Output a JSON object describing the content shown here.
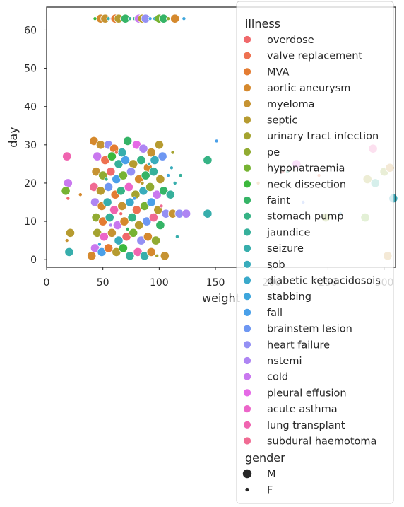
{
  "chart_data": {
    "type": "scatter",
    "title": "",
    "xlabel": "weight",
    "ylabel": "day",
    "xlim": [
      0,
      310
    ],
    "ylim": [
      -2,
      66
    ],
    "xticks": [
      "0",
      "50",
      "100",
      "150",
      "200",
      "250",
      "300"
    ],
    "xtick_values": [
      0,
      50,
      100,
      150,
      200,
      250,
      300
    ],
    "yticks": [
      "0",
      "10",
      "20",
      "30",
      "40",
      "50",
      "60"
    ],
    "ytick_values": [
      0,
      10,
      20,
      30,
      40,
      50,
      60
    ],
    "grid": false,
    "legend_placement": "top-right, overlapping plot",
    "legend_hue_title": "illness",
    "legend_size_title": "gender",
    "illnesses": [
      {
        "name": "overdose",
        "color": "#f0696b"
      },
      {
        "name": "valve replacement",
        "color": "#ee7151"
      },
      {
        "name": "MVA",
        "color": "#e47c32"
      },
      {
        "name": "aortic aneurysm",
        "color": "#d5892d"
      },
      {
        "name": "myeloma",
        "color": "#c69332"
      },
      {
        "name": "septic",
        "color": "#b69b30"
      },
      {
        "name": "urinary tract infection",
        "color": "#a4a32f"
      },
      {
        "name": "pe",
        "color": "#91ab32"
      },
      {
        "name": "hyponatraemia",
        "color": "#76b332"
      },
      {
        "name": "neck dissection",
        "color": "#3cb83c"
      },
      {
        "name": "faint",
        "color": "#35b466"
      },
      {
        "name": "stomach pump",
        "color": "#36b385"
      },
      {
        "name": "jaundice",
        "color": "#36b09b"
      },
      {
        "name": "seizure",
        "color": "#37aeac"
      },
      {
        "name": "sob",
        "color": "#39acbc"
      },
      {
        "name": "diabetic ketoacidosois",
        "color": "#3aa9ca"
      },
      {
        "name": "stabbing",
        "color": "#3ea6dc"
      },
      {
        "name": "fall",
        "color": "#4aa0e9"
      },
      {
        "name": "brainstem lesion",
        "color": "#6e97f2"
      },
      {
        "name": "heart failure",
        "color": "#9490f4"
      },
      {
        "name": "nstemi",
        "color": "#ae85f3"
      },
      {
        "name": "cold",
        "color": "#c978ef"
      },
      {
        "name": "pleural effusion",
        "color": "#e569e6"
      },
      {
        "name": "acute asthma",
        "color": "#ec65c9"
      },
      {
        "name": "lung transplant",
        "color": "#f064b0"
      },
      {
        "name": "subdural haemotoma",
        "color": "#f06b93"
      }
    ],
    "genders": [
      {
        "name": "M",
        "size": "large"
      },
      {
        "name": "F",
        "size": "small"
      }
    ],
    "points": [
      {
        "x": 18,
        "y": 27,
        "illness": "lung transplant",
        "gender": "M"
      },
      {
        "x": 19,
        "y": 20,
        "illness": "cold",
        "gender": "M"
      },
      {
        "x": 17,
        "y": 18,
        "illness": "hyponatraemia",
        "gender": "M"
      },
      {
        "x": 19,
        "y": 16,
        "illness": "overdose",
        "gender": "F"
      },
      {
        "x": 21,
        "y": 7,
        "illness": "septic",
        "gender": "M"
      },
      {
        "x": 20,
        "y": 2,
        "illness": "seizure",
        "gender": "M"
      },
      {
        "x": 18,
        "y": 5,
        "illness": "myeloma",
        "gender": "F"
      },
      {
        "x": 30,
        "y": 17,
        "illness": "aortic aneurysm",
        "gender": "F"
      },
      {
        "x": 42,
        "y": 31,
        "illness": "aortic aneurysm",
        "gender": "M"
      },
      {
        "x": 48,
        "y": 30,
        "illness": "myeloma",
        "gender": "M"
      },
      {
        "x": 55,
        "y": 30,
        "illness": "heart failure",
        "gender": "M"
      },
      {
        "x": 60,
        "y": 29,
        "illness": "MVA",
        "gender": "M"
      },
      {
        "x": 67,
        "y": 28,
        "illness": "seizure",
        "gender": "M"
      },
      {
        "x": 72,
        "y": 31,
        "illness": "faint",
        "gender": "M"
      },
      {
        "x": 80,
        "y": 30,
        "illness": "pleural effusion",
        "gender": "M"
      },
      {
        "x": 86,
        "y": 29,
        "illness": "nstemi",
        "gender": "M"
      },
      {
        "x": 93,
        "y": 28,
        "illness": "myeloma",
        "gender": "M"
      },
      {
        "x": 100,
        "y": 30,
        "illness": "septic",
        "gender": "M"
      },
      {
        "x": 103,
        "y": 27,
        "illness": "brainstem lesion",
        "gender": "M"
      },
      {
        "x": 112,
        "y": 28,
        "illness": "urinary tract infection",
        "gender": "F"
      },
      {
        "x": 45,
        "y": 27,
        "illness": "cold",
        "gender": "M"
      },
      {
        "x": 52,
        "y": 26,
        "illness": "valve replacement",
        "gender": "M"
      },
      {
        "x": 58,
        "y": 27,
        "illness": "neck dissection",
        "gender": "M"
      },
      {
        "x": 64,
        "y": 25,
        "illness": "jaundice",
        "gender": "M"
      },
      {
        "x": 70,
        "y": 26,
        "illness": "fall",
        "gender": "M"
      },
      {
        "x": 77,
        "y": 25,
        "illness": "septic",
        "gender": "M"
      },
      {
        "x": 84,
        "y": 26,
        "illness": "stomach pump",
        "gender": "M"
      },
      {
        "x": 90,
        "y": 24,
        "illness": "aortic aneurysm",
        "gender": "M"
      },
      {
        "x": 96,
        "y": 26,
        "illness": "sob",
        "gender": "M"
      },
      {
        "x": 44,
        "y": 23,
        "illness": "myeloma",
        "gender": "M"
      },
      {
        "x": 50,
        "y": 22,
        "illness": "pe",
        "gender": "M"
      },
      {
        "x": 57,
        "y": 23,
        "illness": "overdose",
        "gender": "M"
      },
      {
        "x": 62,
        "y": 21,
        "illness": "fall",
        "gender": "M"
      },
      {
        "x": 68,
        "y": 22,
        "illness": "hyponatraemia",
        "gender": "M"
      },
      {
        "x": 75,
        "y": 23,
        "illness": "heart failure",
        "gender": "M"
      },
      {
        "x": 82,
        "y": 21,
        "illness": "aortic aneurysm",
        "gender": "M"
      },
      {
        "x": 88,
        "y": 22,
        "illness": "faint",
        "gender": "M"
      },
      {
        "x": 95,
        "y": 23,
        "illness": "jaundice",
        "gender": "M"
      },
      {
        "x": 101,
        "y": 21,
        "illness": "septic",
        "gender": "M"
      },
      {
        "x": 108,
        "y": 22,
        "illness": "stabbing",
        "gender": "F"
      },
      {
        "x": 114,
        "y": 20,
        "illness": "seizure",
        "gender": "F"
      },
      {
        "x": 42,
        "y": 19,
        "illness": "subdural haemotoma",
        "gender": "M"
      },
      {
        "x": 48,
        "y": 18,
        "illness": "septic",
        "gender": "M"
      },
      {
        "x": 55,
        "y": 19,
        "illness": "brainstem lesion",
        "gender": "M"
      },
      {
        "x": 61,
        "y": 17,
        "illness": "MVA",
        "gender": "M"
      },
      {
        "x": 66,
        "y": 18,
        "illness": "stomach pump",
        "gender": "M"
      },
      {
        "x": 73,
        "y": 19,
        "illness": "acute asthma",
        "gender": "M"
      },
      {
        "x": 79,
        "y": 17,
        "illness": "urinary tract infection",
        "gender": "M"
      },
      {
        "x": 86,
        "y": 18,
        "illness": "sob",
        "gender": "M"
      },
      {
        "x": 92,
        "y": 19,
        "illness": "pe",
        "gender": "M"
      },
      {
        "x": 98,
        "y": 17,
        "illness": "cold",
        "gender": "M"
      },
      {
        "x": 104,
        "y": 18,
        "illness": "faint",
        "gender": "M"
      },
      {
        "x": 110,
        "y": 17,
        "illness": "jaundice",
        "gender": "M"
      },
      {
        "x": 43,
        "y": 15,
        "illness": "nstemi",
        "gender": "M"
      },
      {
        "x": 49,
        "y": 14,
        "illness": "aortic aneurysm",
        "gender": "M"
      },
      {
        "x": 54,
        "y": 15,
        "illness": "seizure",
        "gender": "M"
      },
      {
        "x": 60,
        "y": 13,
        "illness": "lung transplant",
        "gender": "M"
      },
      {
        "x": 67,
        "y": 14,
        "illness": "myeloma",
        "gender": "M"
      },
      {
        "x": 74,
        "y": 15,
        "illness": "diabetic ketoacidosois",
        "gender": "M"
      },
      {
        "x": 80,
        "y": 13,
        "illness": "valve replacement",
        "gender": "M"
      },
      {
        "x": 87,
        "y": 14,
        "illness": "hyponatraemia",
        "gender": "M"
      },
      {
        "x": 93,
        "y": 15,
        "illness": "fall",
        "gender": "M"
      },
      {
        "x": 99,
        "y": 13,
        "illness": "septic",
        "gender": "M"
      },
      {
        "x": 106,
        "y": 12,
        "illness": "heart failure",
        "gender": "M"
      },
      {
        "x": 112,
        "y": 12,
        "illness": "myeloma",
        "gender": "M"
      },
      {
        "x": 118,
        "y": 12,
        "illness": "heart failure",
        "gender": "M"
      },
      {
        "x": 124,
        "y": 12,
        "illness": "nstemi",
        "gender": "M"
      },
      {
        "x": 44,
        "y": 11,
        "illness": "pe",
        "gender": "M"
      },
      {
        "x": 50,
        "y": 10,
        "illness": "MVA",
        "gender": "M"
      },
      {
        "x": 56,
        "y": 11,
        "illness": "jaundice",
        "gender": "M"
      },
      {
        "x": 63,
        "y": 9,
        "illness": "cold",
        "gender": "M"
      },
      {
        "x": 69,
        "y": 10,
        "illness": "aortic aneurysm",
        "gender": "M"
      },
      {
        "x": 76,
        "y": 11,
        "illness": "stomach pump",
        "gender": "M"
      },
      {
        "x": 82,
        "y": 9,
        "illness": "septic",
        "gender": "M"
      },
      {
        "x": 89,
        "y": 10,
        "illness": "brainstem lesion",
        "gender": "M"
      },
      {
        "x": 95,
        "y": 11,
        "illness": "subdural haemotoma",
        "gender": "M"
      },
      {
        "x": 101,
        "y": 9,
        "illness": "faint",
        "gender": "M"
      },
      {
        "x": 45,
        "y": 7,
        "illness": "urinary tract infection",
        "gender": "M"
      },
      {
        "x": 51,
        "y": 6,
        "illness": "acute asthma",
        "gender": "M"
      },
      {
        "x": 58,
        "y": 7,
        "illness": "myeloma",
        "gender": "M"
      },
      {
        "x": 64,
        "y": 5,
        "illness": "sob",
        "gender": "M"
      },
      {
        "x": 71,
        "y": 6,
        "illness": "overdose",
        "gender": "M"
      },
      {
        "x": 77,
        "y": 7,
        "illness": "hyponatraemia",
        "gender": "M"
      },
      {
        "x": 84,
        "y": 5,
        "illness": "heart failure",
        "gender": "M"
      },
      {
        "x": 90,
        "y": 6,
        "illness": "aortic aneurysm",
        "gender": "M"
      },
      {
        "x": 97,
        "y": 5,
        "illness": "pe",
        "gender": "M"
      },
      {
        "x": 43,
        "y": 3,
        "illness": "cold",
        "gender": "M"
      },
      {
        "x": 49,
        "y": 2,
        "illness": "fall",
        "gender": "M"
      },
      {
        "x": 55,
        "y": 3,
        "illness": "MVA",
        "gender": "M"
      },
      {
        "x": 62,
        "y": 2,
        "illness": "septic",
        "gender": "M"
      },
      {
        "x": 68,
        "y": 3,
        "illness": "neck dissection",
        "gender": "M"
      },
      {
        "x": 74,
        "y": 1,
        "illness": "jaundice",
        "gender": "M"
      },
      {
        "x": 81,
        "y": 2,
        "illness": "lung transplant",
        "gender": "M"
      },
      {
        "x": 87,
        "y": 1,
        "illness": "seizure",
        "gender": "M"
      },
      {
        "x": 93,
        "y": 2,
        "illness": "aortic aneurysm",
        "gender": "M"
      },
      {
        "x": 40,
        "y": 1,
        "illness": "aortic aneurysm",
        "gender": "M"
      },
      {
        "x": 105,
        "y": 1,
        "illness": "myeloma",
        "gender": "M"
      },
      {
        "x": 98,
        "y": 1,
        "illness": "urinary tract infection",
        "gender": "F"
      },
      {
        "x": 47,
        "y": 4,
        "illness": "stabbing",
        "gender": "F"
      },
      {
        "x": 57,
        "y": 9,
        "illness": "nstemi",
        "gender": "F"
      },
      {
        "x": 66,
        "y": 12,
        "illness": "overdose",
        "gender": "F"
      },
      {
        "x": 78,
        "y": 16,
        "illness": "fall",
        "gender": "F"
      },
      {
        "x": 85,
        "y": 20,
        "illness": "septic",
        "gender": "F"
      },
      {
        "x": 91,
        "y": 25,
        "illness": "sob",
        "gender": "F"
      },
      {
        "x": 62,
        "y": 28,
        "illness": "valve replacement",
        "gender": "F"
      },
      {
        "x": 53,
        "y": 21,
        "illness": "stomach pump",
        "gender": "F"
      },
      {
        "x": 72,
        "y": 8,
        "illness": "faint",
        "gender": "F"
      },
      {
        "x": 102,
        "y": 14,
        "illness": "subdural haemotoma",
        "gender": "F"
      },
      {
        "x": 111,
        "y": 24,
        "illness": "sob",
        "gender": "F"
      },
      {
        "x": 119,
        "y": 22,
        "illness": "jaundice",
        "gender": "F"
      },
      {
        "x": 116,
        "y": 6,
        "illness": "seizure",
        "gender": "F"
      },
      {
        "x": 143,
        "y": 26,
        "illness": "stomach pump",
        "gender": "M"
      },
      {
        "x": 143,
        "y": 12,
        "illness": "seizure",
        "gender": "M"
      },
      {
        "x": 151,
        "y": 31,
        "illness": "fall",
        "gender": "F"
      },
      {
        "x": 188,
        "y": 20,
        "illness": "aortic aneurysm",
        "gender": "F"
      },
      {
        "x": 210,
        "y": 23,
        "illness": "overdose",
        "gender": "F"
      },
      {
        "x": 214,
        "y": 23,
        "illness": "jaundice",
        "gender": "F"
      },
      {
        "x": 222,
        "y": 25,
        "illness": "pleural effusion",
        "gender": "M"
      },
      {
        "x": 228,
        "y": 15,
        "illness": "brainstem lesion",
        "gender": "F"
      },
      {
        "x": 242,
        "y": 22,
        "illness": "valve replacement",
        "gender": "F"
      },
      {
        "x": 248,
        "y": 11,
        "illness": "pe",
        "gender": "M"
      },
      {
        "x": 261,
        "y": 12,
        "illness": "stabbing",
        "gender": "F"
      },
      {
        "x": 285,
        "y": 21,
        "illness": "urinary tract infection",
        "gender": "M"
      },
      {
        "x": 292,
        "y": 20,
        "illness": "jaundice",
        "gender": "M"
      },
      {
        "x": 290,
        "y": 29,
        "illness": "lung transplant",
        "gender": "M"
      },
      {
        "x": 300,
        "y": 23,
        "illness": "pe",
        "gender": "M"
      },
      {
        "x": 305,
        "y": 24,
        "illness": "myeloma",
        "gender": "M"
      },
      {
        "x": 308,
        "y": 16,
        "illness": "sob",
        "gender": "M"
      },
      {
        "x": 303,
        "y": 1,
        "illness": "myeloma",
        "gender": "M"
      },
      {
        "x": 283,
        "y": 11,
        "illness": "hyponatraemia",
        "gender": "M"
      },
      {
        "x": 48,
        "y": 63,
        "illness": "aortic aneurysm",
        "gender": "M"
      },
      {
        "x": 52,
        "y": 63,
        "illness": "myeloma",
        "gender": "M"
      },
      {
        "x": 55,
        "y": 63,
        "illness": "seizure",
        "gender": "F"
      },
      {
        "x": 58,
        "y": 63,
        "illness": "nstemi",
        "gender": "F"
      },
      {
        "x": 61,
        "y": 63,
        "illness": "MVA",
        "gender": "M"
      },
      {
        "x": 64,
        "y": 63,
        "illness": "septic",
        "gender": "M"
      },
      {
        "x": 67,
        "y": 63,
        "illness": "valve replacement",
        "gender": "F"
      },
      {
        "x": 70,
        "y": 63,
        "illness": "faint",
        "gender": "M"
      },
      {
        "x": 74,
        "y": 63,
        "illness": "jaundice",
        "gender": "F"
      },
      {
        "x": 78,
        "y": 63,
        "illness": "stomach pump",
        "gender": "F"
      },
      {
        "x": 82,
        "y": 63,
        "illness": "cold",
        "gender": "M"
      },
      {
        "x": 85,
        "y": 63,
        "illness": "septic",
        "gender": "M"
      },
      {
        "x": 88,
        "y": 63,
        "illness": "heart failure",
        "gender": "M"
      },
      {
        "x": 92,
        "y": 63,
        "illness": "fall",
        "gender": "F"
      },
      {
        "x": 96,
        "y": 63,
        "illness": "sob",
        "gender": "F"
      },
      {
        "x": 100,
        "y": 63,
        "illness": "hyponatraemia",
        "gender": "M"
      },
      {
        "x": 104,
        "y": 63,
        "illness": "faint",
        "gender": "M"
      },
      {
        "x": 108,
        "y": 63,
        "illness": "pe",
        "gender": "F"
      },
      {
        "x": 114,
        "y": 63,
        "illness": "aortic aneurysm",
        "gender": "M"
      },
      {
        "x": 122,
        "y": 63,
        "illness": "stabbing",
        "gender": "F"
      },
      {
        "x": 43,
        "y": 63,
        "illness": "neck dissection",
        "gender": "F"
      }
    ]
  }
}
